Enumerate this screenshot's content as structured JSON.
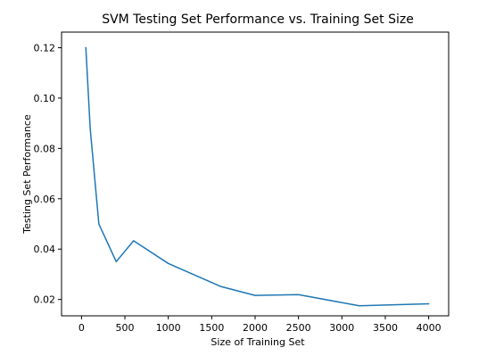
{
  "chart_data": {
    "type": "line",
    "title": "SVM Testing Set Performance vs. Training Set Size",
    "xlabel": "Size of Training Set",
    "ylabel": "Testing Set Performance",
    "xlim": [
      -230,
      4230
    ],
    "ylim": [
      0.0135,
      0.1262
    ],
    "xticks": [
      0,
      500,
      1000,
      1500,
      2000,
      2500,
      3000,
      3500,
      4000
    ],
    "xtick_labels": [
      "0",
      "500",
      "1000",
      "1500",
      "2000",
      "2500",
      "3000",
      "3500",
      "4000"
    ],
    "yticks": [
      0.02,
      0.04,
      0.06,
      0.08,
      0.1,
      0.12
    ],
    "ytick_labels": [
      "0.02",
      "0.04",
      "0.06",
      "0.08",
      "0.10",
      "0.12"
    ],
    "grid": false,
    "legend": "none",
    "series": [
      {
        "color": "#1f77b4",
        "x": [
          50,
          100,
          200,
          400,
          600,
          1000,
          1600,
          2000,
          2500,
          3200,
          4000
        ],
        "y": [
          0.12,
          0.088,
          0.05,
          0.035,
          0.0433,
          0.0343,
          0.0252,
          0.0216,
          0.0219,
          0.0175,
          0.0183
        ]
      }
    ]
  }
}
